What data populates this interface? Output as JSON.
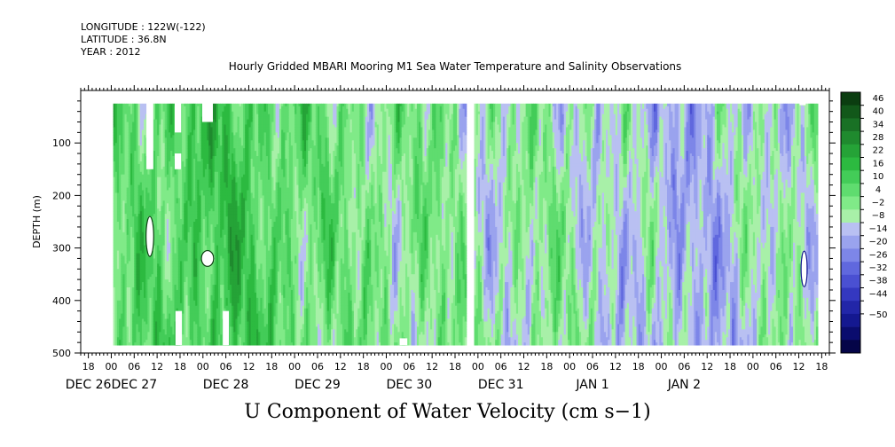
{
  "header": {
    "longitude": "LONGITUDE : 122W(-122)",
    "latitude": "LATITUDE : 36.8N",
    "year": "YEAR : 2012"
  },
  "chart_data": {
    "type": "heatmap",
    "title": "Hourly Gridded MBARI Mooring M1 Sea Water Temperature and Salinity Observations",
    "caption": "U Component of Water Velocity (cm s−1)",
    "ylabel": "DEPTH (m)",
    "y_inverted": true,
    "ylim": [
      500,
      0
    ],
    "y_ticks": [
      100,
      200,
      300,
      400,
      500
    ],
    "x_range_hours": [
      -8,
      188
    ],
    "x_hour_ticks": [
      {
        "h": -6,
        "label": "18"
      },
      {
        "h": 0,
        "label": "00"
      },
      {
        "h": 6,
        "label": "06"
      },
      {
        "h": 12,
        "label": "12"
      },
      {
        "h": 18,
        "label": "18"
      },
      {
        "h": 24,
        "label": "00"
      },
      {
        "h": 30,
        "label": "06"
      },
      {
        "h": 36,
        "label": "12"
      },
      {
        "h": 42,
        "label": "18"
      },
      {
        "h": 48,
        "label": "00"
      },
      {
        "h": 54,
        "label": "06"
      },
      {
        "h": 60,
        "label": "12"
      },
      {
        "h": 66,
        "label": "18"
      },
      {
        "h": 72,
        "label": "00"
      },
      {
        "h": 78,
        "label": "06"
      },
      {
        "h": 84,
        "label": "12"
      },
      {
        "h": 90,
        "label": "18"
      },
      {
        "h": 96,
        "label": "00"
      },
      {
        "h": 102,
        "label": "06"
      },
      {
        "h": 108,
        "label": "12"
      },
      {
        "h": 114,
        "label": "18"
      },
      {
        "h": 120,
        "label": "00"
      },
      {
        "h": 126,
        "label": "06"
      },
      {
        "h": 132,
        "label": "12"
      },
      {
        "h": 138,
        "label": "18"
      },
      {
        "h": 144,
        "label": "00"
      },
      {
        "h": 150,
        "label": "06"
      },
      {
        "h": 156,
        "label": "12"
      },
      {
        "h": 162,
        "label": "18"
      },
      {
        "h": 168,
        "label": "00"
      },
      {
        "h": 174,
        "label": "06"
      },
      {
        "h": 180,
        "label": "12"
      },
      {
        "h": 186,
        "label": "18"
      }
    ],
    "x_date_labels": [
      {
        "h": -6,
        "label": "DEC 26"
      },
      {
        "h": 6,
        "label": "DEC 27"
      },
      {
        "h": 30,
        "label": "DEC 28"
      },
      {
        "h": 54,
        "label": "DEC 29"
      },
      {
        "h": 78,
        "label": "DEC 30"
      },
      {
        "h": 102,
        "label": "DEC 31"
      },
      {
        "h": 126,
        "label": "JAN  1"
      },
      {
        "h": 150,
        "label": "JAN  2"
      }
    ],
    "colorbar": {
      "min": -50,
      "max": 50,
      "labels": [
        "46",
        "40",
        "34",
        "28",
        "22",
        "16",
        "10",
        "4",
        "−2",
        "−8",
        "−14",
        "−20",
        "−26",
        "−32",
        "−38",
        "−44",
        "−50"
      ],
      "colors": [
        "#0b3d10",
        "#12581a",
        "#197125",
        "#1f8a2e",
        "#25a337",
        "#2cba40",
        "#43cc58",
        "#5fdc6f",
        "#80ea88",
        "#a8f0a8",
        "#b9c0f2",
        "#9aa3ee",
        "#7d86e8",
        "#6068de",
        "#4a50d2",
        "#3438c0",
        "#2226a8",
        "#141890",
        "#0a0c6e",
        "#050548"
      ]
    },
    "data_extent_hours": [
      0.5,
      185
    ],
    "data_extent_depth": [
      25,
      485
    ],
    "gap_hours": [
      93.3,
      94.7
    ],
    "missing_blocks": [
      {
        "h0": 9.2,
        "h1": 11,
        "d0": 20,
        "d1": 150
      },
      {
        "h0": 16.6,
        "h1": 18.3,
        "d0": 20,
        "d1": 80
      },
      {
        "h0": 16.6,
        "h1": 18.3,
        "d0": 120,
        "d1": 150
      },
      {
        "h0": 23.8,
        "h1": 26.6,
        "d0": 20,
        "d1": 60
      },
      {
        "h0": 16.8,
        "h1": 18.5,
        "d0": 420,
        "d1": 485
      },
      {
        "h0": 29.2,
        "h1": 30.8,
        "d0": 420,
        "d1": 485
      },
      {
        "h0": 75.5,
        "h1": 77.5,
        "d0": 472,
        "d1": 485
      },
      {
        "h0": 180.2,
        "h1": 181.8,
        "d0": 20,
        "d1": 28
      }
    ],
    "hole_regions": [
      {
        "h": 10.1,
        "d": 278,
        "rh": 1.0,
        "rd": 38
      },
      {
        "h": 25.2,
        "d": 320,
        "rh": 1.6,
        "rd": 15
      }
    ],
    "near_min_region": {
      "h": 181.4,
      "d": 340,
      "rh": 0.8,
      "rd": 34
    }
  },
  "colors": {
    "positive_ramp_dark": "#0b3d10",
    "positive_ramp_light": "#a8f0a8",
    "negative_ramp_light": "#b9c0f2",
    "negative_ramp_dark": "#050548"
  }
}
